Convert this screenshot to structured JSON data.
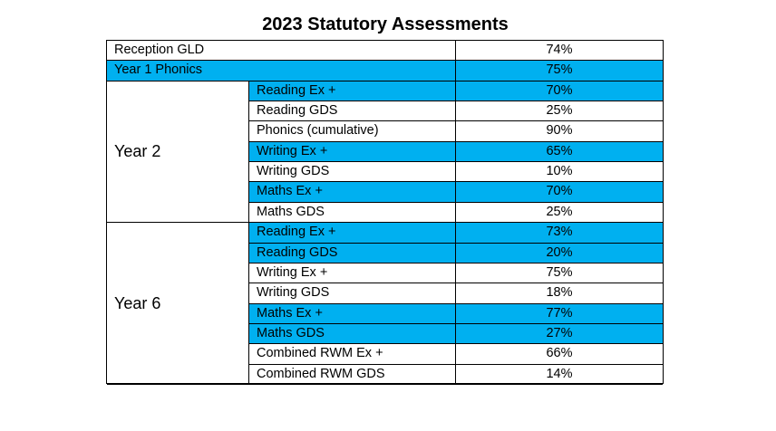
{
  "title": "2023 Statutory Assessments",
  "highlight_color": "#00B0F0",
  "single_rows": [
    {
      "label": "Reception GLD",
      "value": "74%",
      "highlight": false
    },
    {
      "label": "Year 1 Phonics",
      "value": "75%",
      "highlight": true
    }
  ],
  "groups": [
    {
      "label": "Year 2",
      "rows": [
        {
          "label": "Reading Ex +",
          "value": "70%",
          "highlight": true
        },
        {
          "label": "Reading GDS",
          "value": "25%",
          "highlight": false
        },
        {
          "label": "Phonics (cumulative)",
          "value": "90%",
          "highlight": false
        },
        {
          "label": "Writing Ex +",
          "value": "65%",
          "highlight": true
        },
        {
          "label": "Writing GDS",
          "value": "10%",
          "highlight": false
        },
        {
          "label": "Maths Ex +",
          "value": "70%",
          "highlight": true
        },
        {
          "label": "Maths GDS",
          "value": "25%",
          "highlight": false
        }
      ]
    },
    {
      "label": "Year 6",
      "rows": [
        {
          "label": "Reading Ex +",
          "value": "73%",
          "highlight": true
        },
        {
          "label": "Reading GDS",
          "value": "20%",
          "highlight": true
        },
        {
          "label": "Writing Ex +",
          "value": "75%",
          "highlight": false
        },
        {
          "label": "Writing GDS",
          "value": "18%",
          "highlight": false
        },
        {
          "label": "Maths Ex +",
          "value": "77%",
          "highlight": true
        },
        {
          "label": "Maths GDS",
          "value": "27%",
          "highlight": true
        },
        {
          "label": "Combined RWM Ex +",
          "value": "66%",
          "highlight": false
        },
        {
          "label": "Combined RWM GDS",
          "value": "14%",
          "highlight": false
        }
      ]
    }
  ]
}
